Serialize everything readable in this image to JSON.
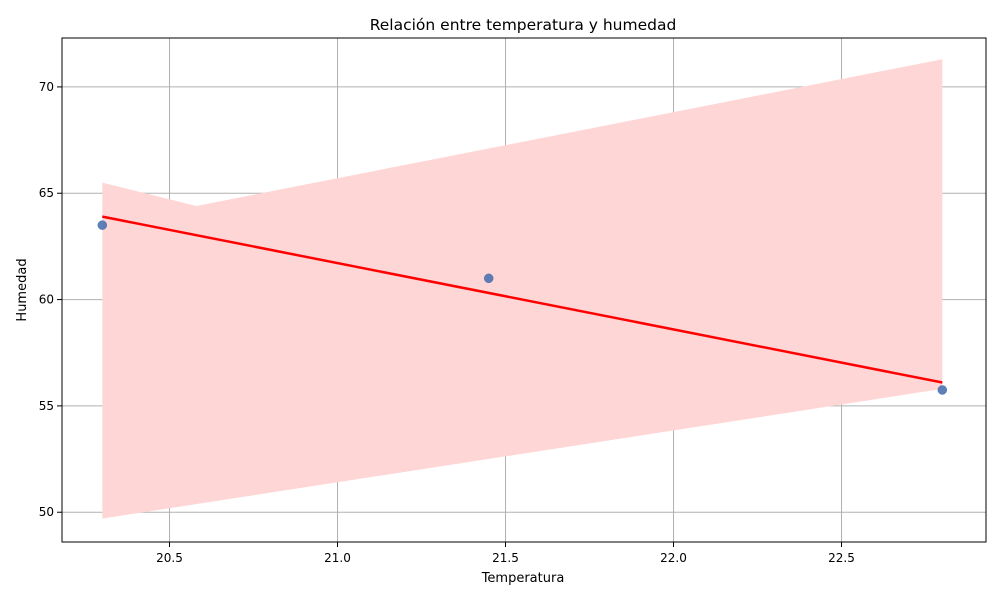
{
  "chart_data": {
    "type": "scatter",
    "title": "Relación entre temperatura y humedad",
    "xlabel": "Temperatura",
    "ylabel": "Humedad",
    "xlim": [
      20.18,
      22.93
    ],
    "ylim": [
      48.6,
      72.3
    ],
    "x_ticks": [
      20.5,
      21.0,
      21.5,
      22.0,
      22.5
    ],
    "x_tick_labels": [
      "20.5",
      "21.0",
      "21.5",
      "22.0",
      "22.5"
    ],
    "y_ticks": [
      50,
      55,
      60,
      65,
      70
    ],
    "y_tick_labels": [
      "50",
      "55",
      "60",
      "65",
      "70"
    ],
    "grid": true,
    "points": [
      {
        "x": 20.3,
        "y": 63.5
      },
      {
        "x": 21.45,
        "y": 61.0
      },
      {
        "x": 22.8,
        "y": 55.75
      }
    ],
    "regression": {
      "x": [
        20.3,
        22.8
      ],
      "y": [
        63.9,
        56.1
      ]
    },
    "confidence_band": {
      "upper": [
        {
          "x": 20.3,
          "y": 65.5
        },
        {
          "x": 20.58,
          "y": 64.4
        },
        {
          "x": 22.8,
          "y": 71.3
        }
      ],
      "lower": [
        {
          "x": 20.3,
          "y": 49.7
        },
        {
          "x": 22.8,
          "y": 55.8
        }
      ]
    },
    "colors": {
      "points": "#4c72b0",
      "regression_line": "#ff0000",
      "confidence_band": "#ffd6d6",
      "grid": "#b0b0b0"
    }
  }
}
